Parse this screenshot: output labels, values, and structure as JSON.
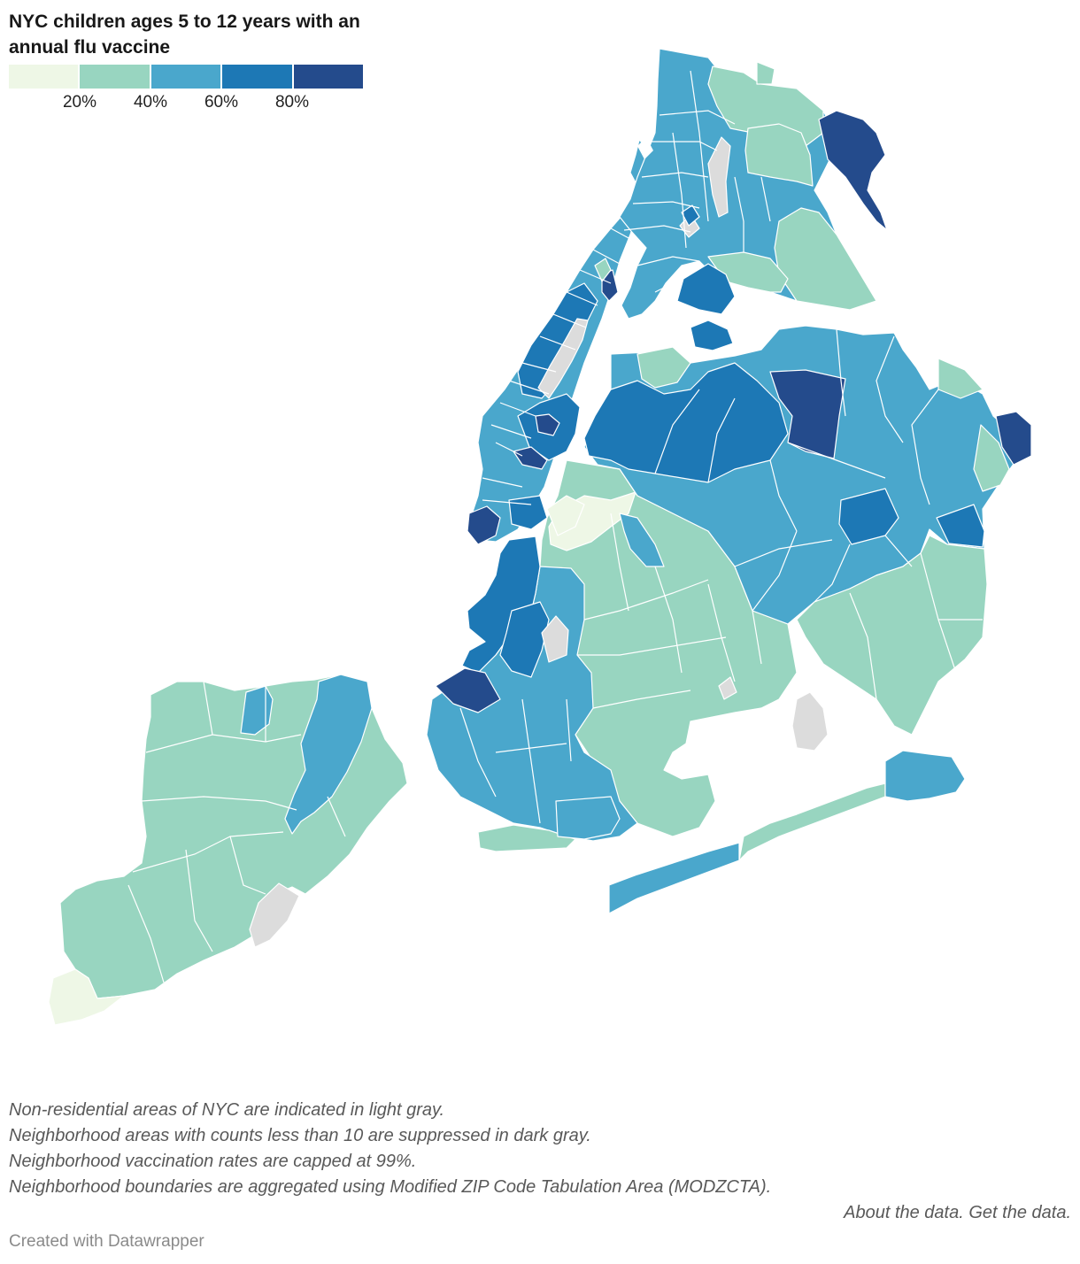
{
  "title": "NYC children ages 5 to 12 years with an annual flu vaccine",
  "legend": {
    "colors": [
      "#eef7e6",
      "#98d5c0",
      "#4aa7cc",
      "#1d78b5",
      "#244b8c"
    ],
    "ticks": [
      "20%",
      "40%",
      "60%",
      "80%"
    ]
  },
  "colors": {
    "non_residential": "#dcdcdc",
    "suppressed": "#8c8c8c",
    "boundary": "#ffffff"
  },
  "notes": [
    "Non-residential areas of NYC are indicated in light gray.",
    "Neighborhood areas with counts less than 10 are suppressed in dark gray.",
    "Neighborhood vaccination rates are capped at 99%.",
    "Neighborhood boundaries are aggregated using Modified ZIP Code Tabulation Area (MODZCTA)."
  ],
  "links": {
    "about": "About the data.",
    "get": "Get the data."
  },
  "credit": "Created with Datawrapper"
}
